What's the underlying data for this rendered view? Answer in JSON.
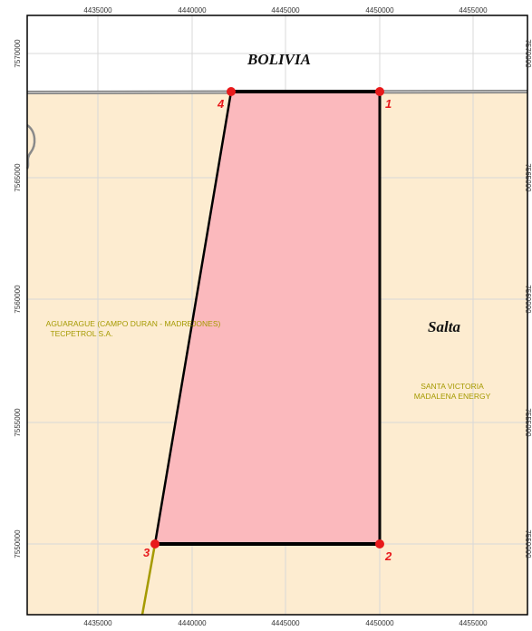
{
  "map": {
    "country_label": "BOLIVIA",
    "province_label": "Salta",
    "block_labels": {
      "aguarague_line1": "AGUARAGUE (CAMPO DURAN - MADREJONES)",
      "aguarague_line2": "TECPETROL S.A.",
      "santa_victoria_line1": "SANTA VICTORIA",
      "santa_victoria_line2": "MADALENA ENERGY"
    },
    "x_ticks": [
      "4435000",
      "4440000",
      "4445000",
      "4450000",
      "4455000"
    ],
    "y_ticks": [
      "7570000",
      "7565000",
      "7560000",
      "7555000",
      "7550000"
    ],
    "vertices": [
      {
        "id": "1",
        "x": 4450000,
        "y": 7568000
      },
      {
        "id": "2",
        "x": 4450000,
        "y": 7550000
      },
      {
        "id": "3",
        "x": 4438000,
        "y": 7550000
      },
      {
        "id": "4",
        "x": 4442000,
        "y": 7568000
      }
    ],
    "colors": {
      "argentina_fill": "#fdecd0",
      "bolivia_fill": "#ffffff",
      "polygon_fill": "#fbb9bd",
      "vertex_marker": "#e8191b",
      "block_boundary": "#a59a00",
      "grid": "#d8d8d8"
    }
  }
}
